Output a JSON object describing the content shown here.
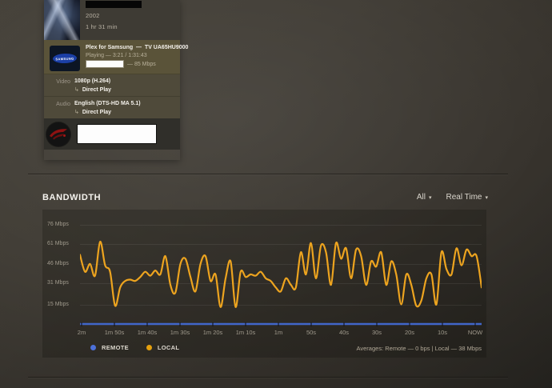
{
  "now_playing_card": {
    "year": "2002",
    "duration": "1 hr 31 min",
    "player": {
      "name": "Plex for Samsung",
      "separator": "—",
      "device": "TV UA65HU9000",
      "status_line": "Playing — 3:21 / 1:31:43",
      "bitrate_suffix": "— 85 Mbps",
      "logo_text": "SAMSUNG"
    },
    "streams": [
      {
        "label": "Video",
        "value": "1080p (H.264)",
        "decision_arrow": "↳",
        "decision": "Direct Play"
      },
      {
        "label": "Audio",
        "value": "English (DTS-HD MA 5.1)",
        "decision_arrow": "↳",
        "decision": "Direct Play"
      }
    ]
  },
  "bandwidth": {
    "title": "BANDWIDTH",
    "filter_all": "All",
    "filter_timeframe": "Real Time",
    "caret": "▾",
    "averages": "Averages: Remote — 0 bps | Local — 38 Mbps",
    "legend": [
      {
        "label": "REMOTE",
        "color": "#4d71d9"
      },
      {
        "label": "LOCAL",
        "color": "#e5a00d"
      }
    ]
  },
  "chart_data": {
    "type": "line",
    "title": "BANDWIDTH",
    "ylabel": "Mbps",
    "ylim": [
      0,
      76
    ],
    "grid": true,
    "legend_position": "bottom-left",
    "y_tick_labels": [
      "76 Mbps",
      "61 Mbps",
      "46 Mbps",
      "31 Mbps",
      "15 Mbps"
    ],
    "y_tick_values": [
      76,
      61,
      46,
      31,
      15
    ],
    "x_tick_labels": [
      "2m",
      "1m 50s",
      "1m 40s",
      "1m 30s",
      "1m 20s",
      "1m 10s",
      "1m",
      "50s",
      "40s",
      "30s",
      "20s",
      "10s",
      "NOW"
    ],
    "series": [
      {
        "name": "REMOTE",
        "color": "#4166c9",
        "unit": "bps",
        "average": "0 bps",
        "values": [
          0,
          0
        ]
      },
      {
        "name": "LOCAL",
        "color": "#eda41f",
        "unit": "Mbps",
        "average": "38 Mbps",
        "values": [
          53,
          40,
          46,
          37,
          63,
          45,
          40,
          14,
          28,
          33,
          34,
          33,
          36,
          40,
          37,
          41,
          38,
          52,
          30,
          24,
          46,
          50,
          36,
          25,
          46,
          52,
          33,
          38,
          13,
          35,
          48,
          13,
          40,
          36,
          38,
          37,
          40,
          35,
          33,
          28,
          25,
          35,
          30,
          28,
          55,
          38,
          62,
          35,
          60,
          55,
          30,
          62,
          50,
          58,
          35,
          57,
          52,
          30,
          48,
          44,
          55,
          30,
          48,
          38,
          15,
          38,
          30,
          14,
          18,
          35,
          38,
          15,
          55,
          42,
          38,
          58,
          45,
          57,
          52,
          52,
          28
        ]
      }
    ]
  }
}
